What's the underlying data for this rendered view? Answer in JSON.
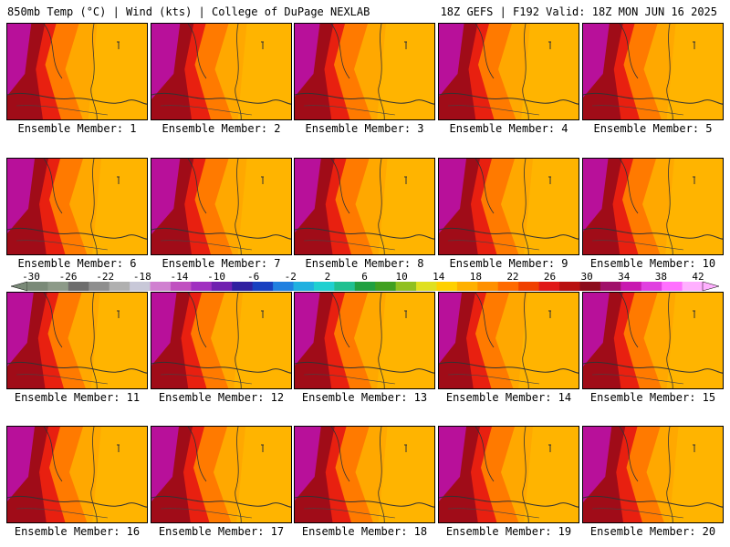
{
  "header": {
    "left": "850mb Temp (°C) | Wind (kts) | College of DuPage NEXLAB",
    "right": "18Z GEFS | F192 Valid: 18Z MON JUN 16 2025"
  },
  "members": [
    {
      "label": "Ensemble Member: 1",
      "warmth": 0.55
    },
    {
      "label": "Ensemble Member: 2",
      "warmth": 0.35
    },
    {
      "label": "Ensemble Member: 3",
      "warmth": 0.5
    },
    {
      "label": "Ensemble Member: 4",
      "warmth": 0.5
    },
    {
      "label": "Ensemble Member: 5",
      "warmth": 0.45
    },
    {
      "label": "Ensemble Member: 6",
      "warmth": 0.4
    },
    {
      "label": "Ensemble Member: 7",
      "warmth": 0.35
    },
    {
      "label": "Ensemble Member: 8",
      "warmth": 0.45
    },
    {
      "label": "Ensemble Member: 9",
      "warmth": 0.4
    },
    {
      "label": "Ensemble Member: 10",
      "warmth": 0.5
    },
    {
      "label": "Ensemble Member: 11",
      "warmth": 0.45
    },
    {
      "label": "Ensemble Member: 12",
      "warmth": 0.5
    },
    {
      "label": "Ensemble Member: 13",
      "warmth": 0.5
    },
    {
      "label": "Ensemble Member: 14",
      "warmth": 0.6
    },
    {
      "label": "Ensemble Member: 15",
      "warmth": 0.45
    },
    {
      "label": "Ensemble Member: 16",
      "warmth": 0.4
    },
    {
      "label": "Ensemble Member: 17",
      "warmth": 0.4
    },
    {
      "label": "Ensemble Member: 18",
      "warmth": 0.45
    },
    {
      "label": "Ensemble Member: 19",
      "warmth": 0.4
    },
    {
      "label": "Ensemble Member: 20",
      "warmth": 0.35
    }
  ],
  "colorbar": {
    "labels": [
      "-30",
      "-26",
      "-22",
      "-18",
      "-14",
      "-10",
      "-6",
      "-2",
      "2",
      "6",
      "10",
      "14",
      "18",
      "22",
      "26",
      "30",
      "34",
      "38",
      "42"
    ],
    "colors": [
      "#7a8a78",
      "#8c9a88",
      "#6d6d6d",
      "#8e8e8e",
      "#b0b0b0",
      "#c8c8d8",
      "#d080d0",
      "#c050c0",
      "#a030c0",
      "#7020b0",
      "#3020a0",
      "#1840c0",
      "#2080e0",
      "#20b0e0",
      "#20d0d0",
      "#20c090",
      "#20a040",
      "#40a020",
      "#90c020",
      "#e0e020",
      "#ffd000",
      "#ffb000",
      "#ff9000",
      "#ff6a00",
      "#f04000",
      "#e01818",
      "#b81010",
      "#8c0c1c",
      "#a0106a",
      "#c818b0",
      "#e040e0",
      "#ff70ff",
      "#ffb0ff"
    ]
  }
}
